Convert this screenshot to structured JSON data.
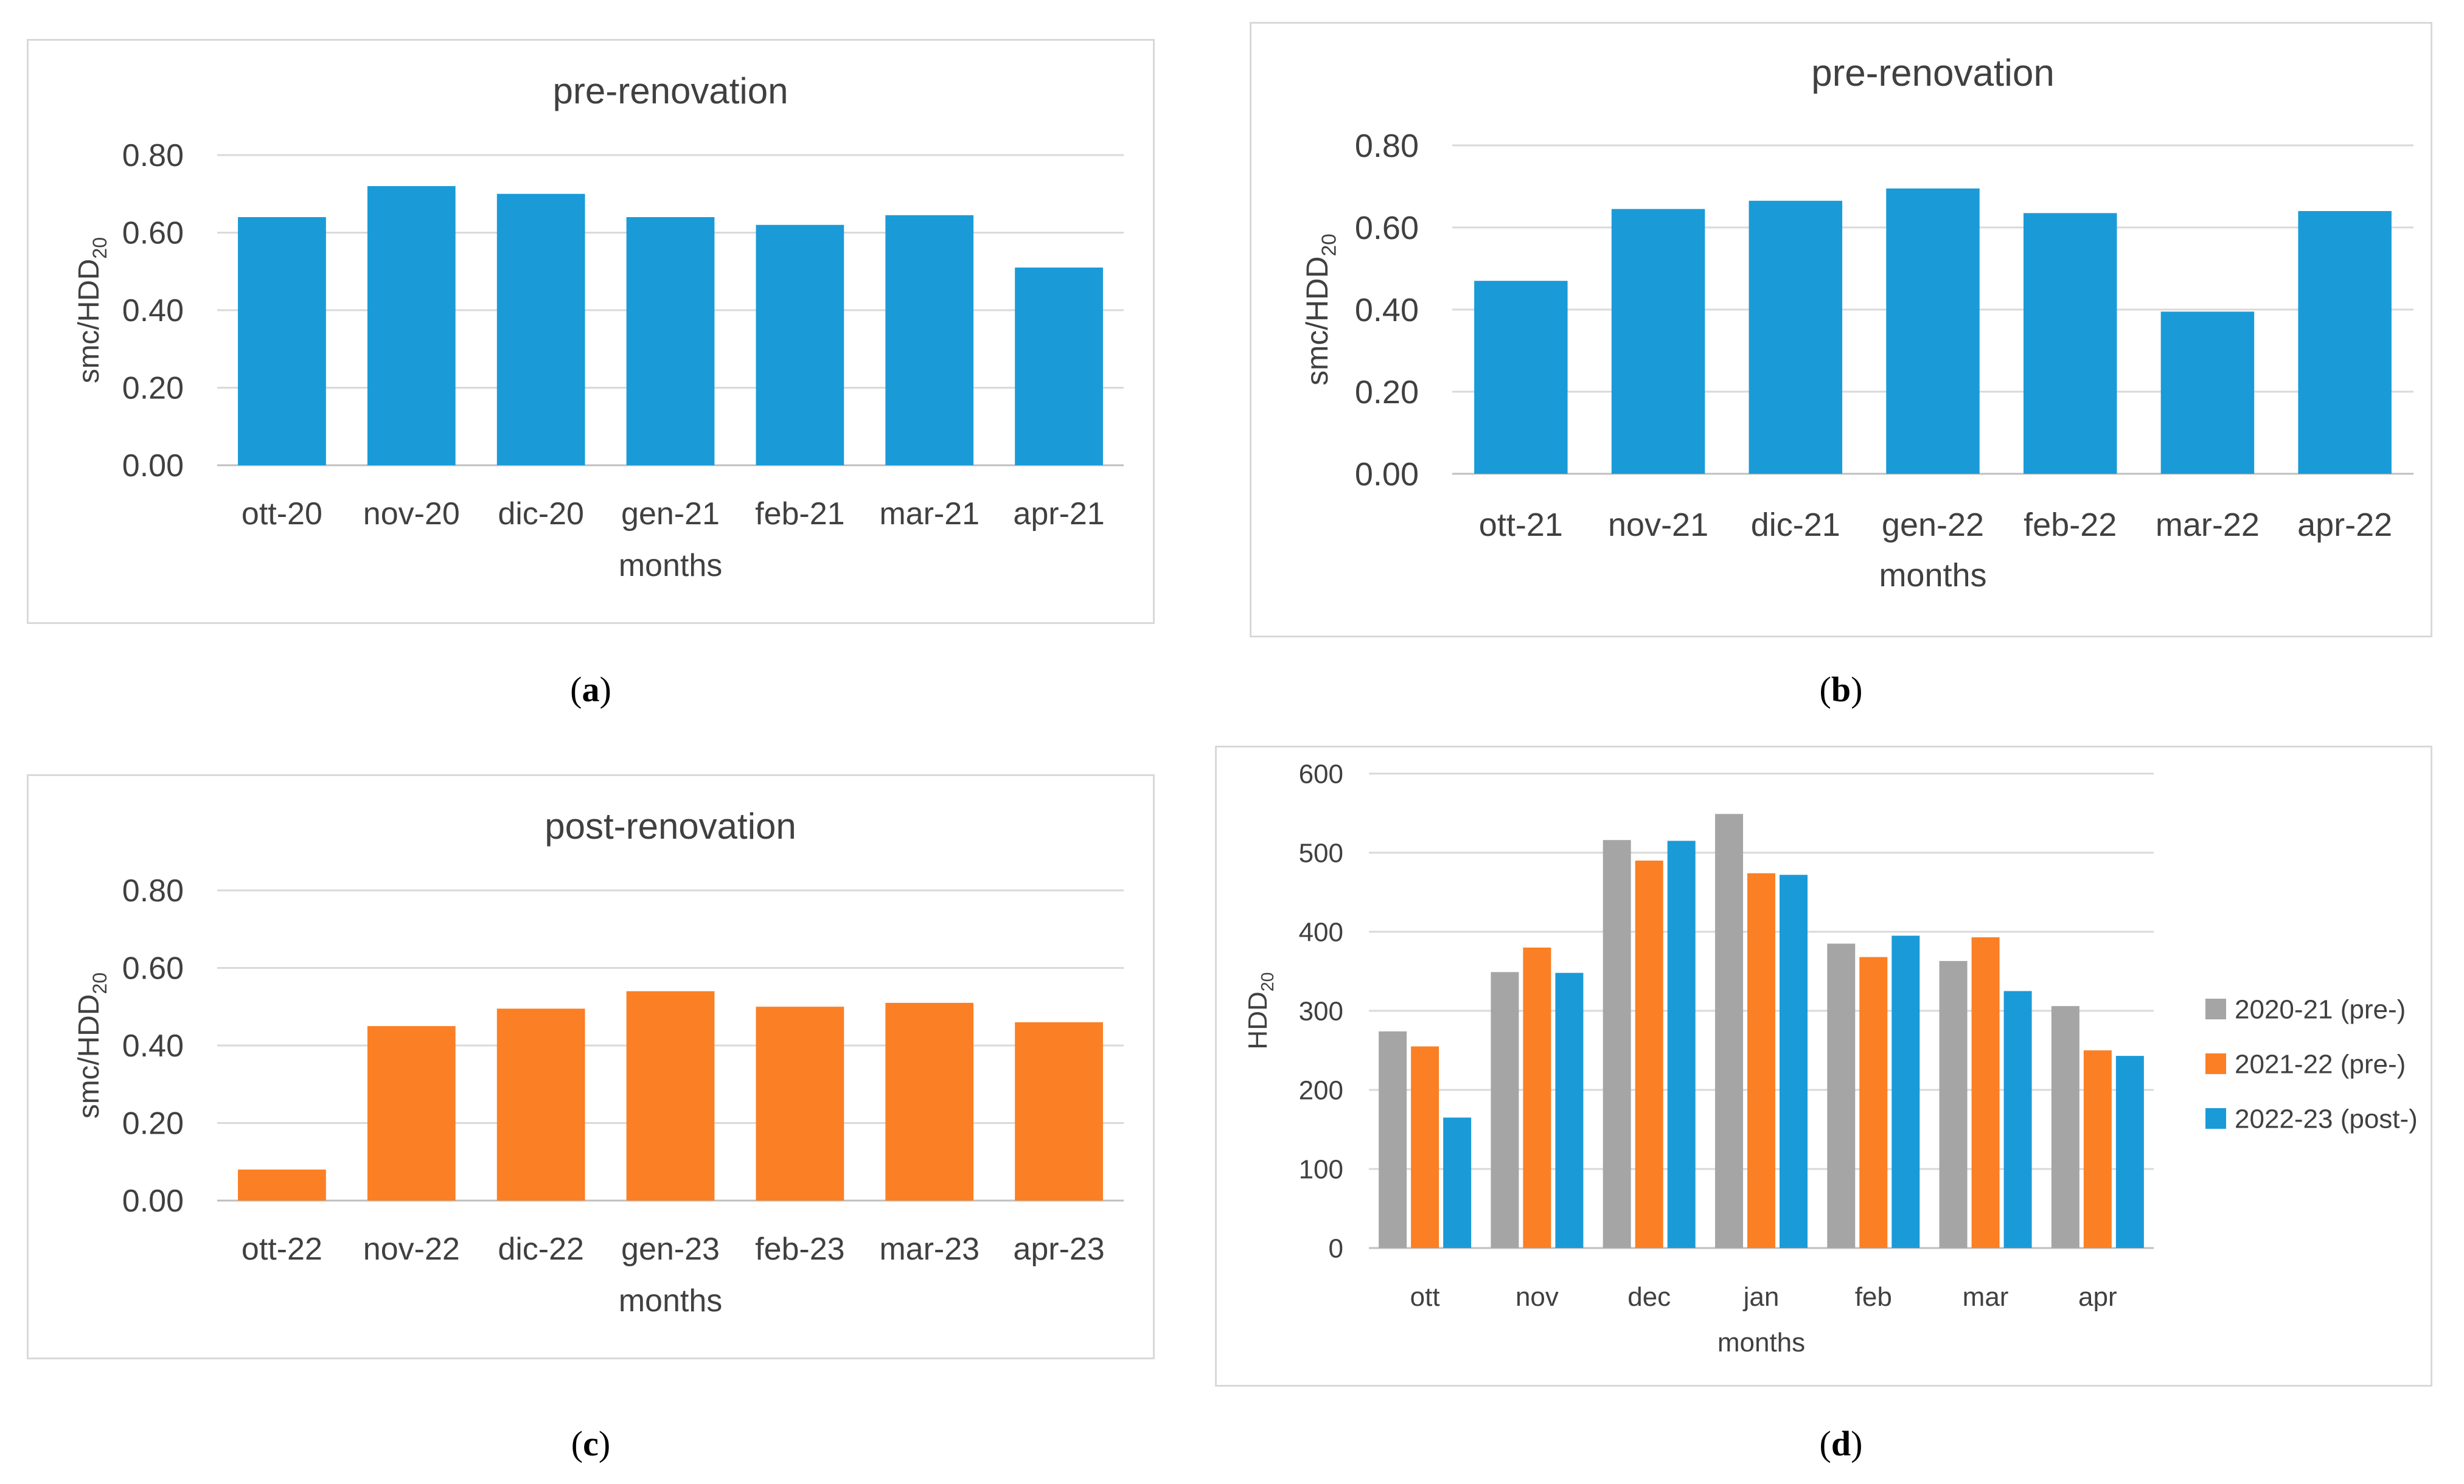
{
  "colors": {
    "blue": "#1a9bd7",
    "orange": "#fb7f24",
    "gray": "#a5a5a5",
    "grid": "#d9d9d9",
    "axis": "#bfbfbf",
    "text": "#404040"
  },
  "chart_data": [
    {
      "id": "a",
      "type": "bar",
      "title": "pre-renovation",
      "xlabel": "months",
      "ylabel": "smc/HDD",
      "ylabel_sub": "20",
      "caption": "a",
      "categories": [
        "ott-20",
        "nov-20",
        "dic-20",
        "gen-21",
        "feb-21",
        "mar-21",
        "apr-21"
      ],
      "values": [
        0.64,
        0.72,
        0.7,
        0.64,
        0.62,
        0.645,
        0.51
      ],
      "ylim": [
        0,
        0.8
      ],
      "yticks": [
        "0.00",
        "0.20",
        "0.40",
        "0.60",
        "0.80"
      ],
      "color": "#1a9bd7"
    },
    {
      "id": "b",
      "type": "bar",
      "title": "pre-renovation",
      "xlabel": "months",
      "ylabel": "smc/HDD",
      "ylabel_sub": "20",
      "caption": "b",
      "categories": [
        "ott-21",
        "nov-21",
        "dic-21",
        "gen-22",
        "feb-22",
        "mar-22",
        "apr-22"
      ],
      "values": [
        0.47,
        0.645,
        0.665,
        0.695,
        0.635,
        0.395,
        0.64
      ],
      "ylim": [
        0,
        0.8
      ],
      "yticks": [
        "0.00",
        "0.20",
        "0.40",
        "0.60",
        "0.80"
      ],
      "color": "#1a9bd7"
    },
    {
      "id": "c",
      "type": "bar",
      "title": "post-renovation",
      "xlabel": "months",
      "ylabel": "smc/HDD",
      "ylabel_sub": "20",
      "caption": "c",
      "categories": [
        "ott-22",
        "nov-22",
        "dic-22",
        "gen-23",
        "feb-23",
        "mar-23",
        "apr-23"
      ],
      "values": [
        0.08,
        0.45,
        0.495,
        0.54,
        0.5,
        0.51,
        0.46
      ],
      "ylim": [
        0,
        0.8
      ],
      "yticks": [
        "0.00",
        "0.20",
        "0.40",
        "0.60",
        "0.80"
      ],
      "color": "#fb7f24"
    },
    {
      "id": "d",
      "type": "bar",
      "title": "",
      "xlabel": "months",
      "ylabel": "HDD",
      "ylabel_sub": "20",
      "caption": "d",
      "categories": [
        "ott",
        "nov",
        "dec",
        "jan",
        "feb",
        "mar",
        "apr"
      ],
      "series": [
        {
          "name": "2020-21 (pre-)",
          "color": "#a5a5a5",
          "values": [
            274,
            349,
            516,
            549,
            385,
            363,
            306
          ]
        },
        {
          "name": "2021-22 (pre-)",
          "color": "#fb7f24",
          "values": [
            255,
            380,
            490,
            474,
            368,
            393,
            250
          ]
        },
        {
          "name": "2022-23 (post-)",
          "color": "#1a9bd7",
          "values": [
            165,
            348,
            515,
            472,
            395,
            325,
            243
          ]
        }
      ],
      "ylim": [
        0,
        600
      ],
      "yticks": [
        "0",
        "100",
        "200",
        "300",
        "400",
        "500",
        "600"
      ],
      "legend": "right"
    }
  ]
}
